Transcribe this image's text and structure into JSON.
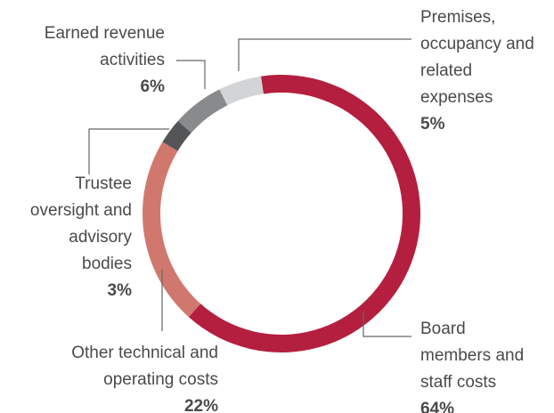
{
  "chart_data": {
    "type": "donut",
    "categories": [
      "Board members and staff costs",
      "Other technical and operating costs",
      "Trustee oversight and advisory bodies",
      "Earned revenue activities",
      "Premises, occupancy and related expenses"
    ],
    "values": [
      64,
      22,
      3,
      6,
      5
    ],
    "value_labels": [
      "64%",
      "22%",
      "3%",
      "6%",
      "5%"
    ],
    "colors": [
      "#b41f3f",
      "#d1786e",
      "#545556",
      "#898a8c",
      "#d3d4d6"
    ]
  }
}
